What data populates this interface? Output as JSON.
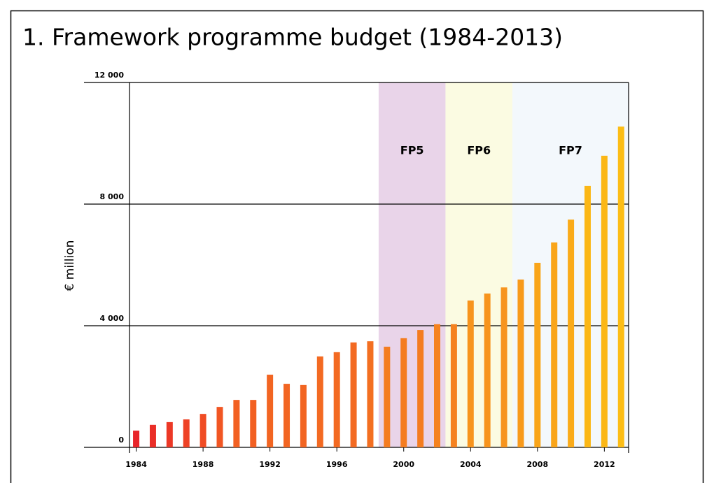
{
  "chart_data": {
    "type": "bar",
    "title": "1. Framework programme budget (1984-2013)",
    "y_label": "€ million",
    "x": [
      1984,
      1985,
      1986,
      1987,
      1988,
      1989,
      1990,
      1991,
      1992,
      1993,
      1994,
      1995,
      1996,
      1997,
      1998,
      1999,
      2000,
      2001,
      2002,
      2003,
      2004,
      2005,
      2006,
      2007,
      2008,
      2009,
      2010,
      2011,
      2012,
      2013
    ],
    "values": [
      550,
      740,
      830,
      920,
      1100,
      1330,
      1560,
      1560,
      2390,
      2090,
      2050,
      2990,
      3130,
      3450,
      3490,
      3310,
      3590,
      3860,
      4050,
      4050,
      4830,
      5060,
      5260,
      5520,
      6070,
      6740,
      7490,
      8600,
      9590,
      10550
    ],
    "colors": [
      "#e8252a",
      "#ea2e27",
      "#ec3826",
      "#ee4225",
      "#f04c24",
      "#f15623",
      "#f26022",
      "#f26022",
      "#f26522",
      "#f26522",
      "#f26522",
      "#f36a22",
      "#f36a22",
      "#f36a22",
      "#f36f21",
      "#f47c20",
      "#f47c20",
      "#f47c20",
      "#f5821f",
      "#f5821f",
      "#f7941d",
      "#f7941d",
      "#f7941d",
      "#f89a1c",
      "#f9a51a",
      "#f9a51a",
      "#faab19",
      "#fbb716",
      "#fbb716",
      "#fcbd15"
    ],
    "bands": [
      {
        "name": "FP5",
        "start": 1998.5,
        "end": 2002.5,
        "color": "#e9d4e9"
      },
      {
        "name": "FP6",
        "start": 2002.5,
        "end": 2006.5,
        "color": "#fbfbe2"
      },
      {
        "name": "FP7",
        "start": 2006.5,
        "end": 2013.45,
        "color": "#f3f8fc"
      }
    ],
    "xlim": [
      1983.6,
      2013.45
    ],
    "xticks": [
      1984,
      1988,
      1992,
      1996,
      2000,
      2004,
      2008,
      2012
    ],
    "ylim": [
      0,
      12000
    ],
    "yticks": [
      0,
      {
        "value": 4000,
        "label": "4 000"
      },
      {
        "value": 8000,
        "label": "8 000"
      },
      {
        "value": 12000,
        "label": "12 000"
      }
    ],
    "grid": true
  }
}
